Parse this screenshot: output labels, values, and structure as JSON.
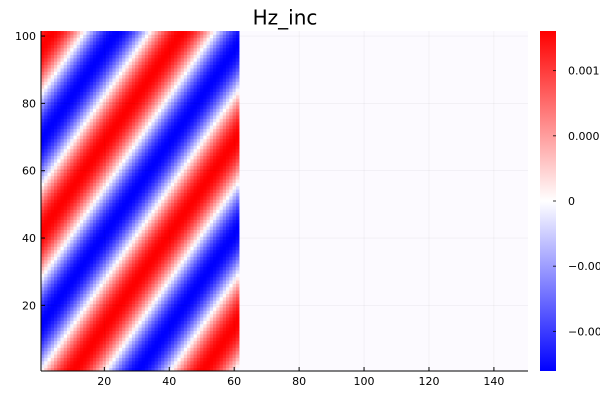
{
  "chart_data": {
    "type": "heatmap",
    "title": "Hz_inc",
    "xlabel": "",
    "ylabel": "",
    "xlim": [
      0.5,
      150.5
    ],
    "ylim": [
      0.5,
      101.5
    ],
    "x_ticks": [
      20,
      40,
      60,
      80,
      100,
      120,
      140
    ],
    "x_tick_labels": [
      "20",
      "40",
      "60",
      "80",
      "100",
      "120",
      "140"
    ],
    "y_ticks": [
      20,
      40,
      60,
      80,
      100
    ],
    "y_tick_labels": [
      "20",
      "40",
      "60",
      "80",
      "100"
    ],
    "grid": true,
    "field": {
      "description_values": "plane wave in columns 1-61, zero elsewhere",
      "nx": 150,
      "ny": 101,
      "nonzero_columns": [
        1,
        61
      ],
      "amplitude": 0.0012,
      "wavelength_x": 40,
      "wave_x_shift_per_row": 0.73,
      "phase_offset": 0
    },
    "colorbar": {
      "colormap": [
        "#0000ff",
        "#ffffff",
        "#ff0000"
      ],
      "range": [
        -0.0012,
        0.0012
      ],
      "ticks": [
        0.00092,
        0.00046,
        0,
        -0.00046,
        -0.00092
      ],
      "tick_labels": [
        "0.001",
        "0.000",
        "0",
        "−0.00",
        "−0.00"
      ]
    }
  }
}
